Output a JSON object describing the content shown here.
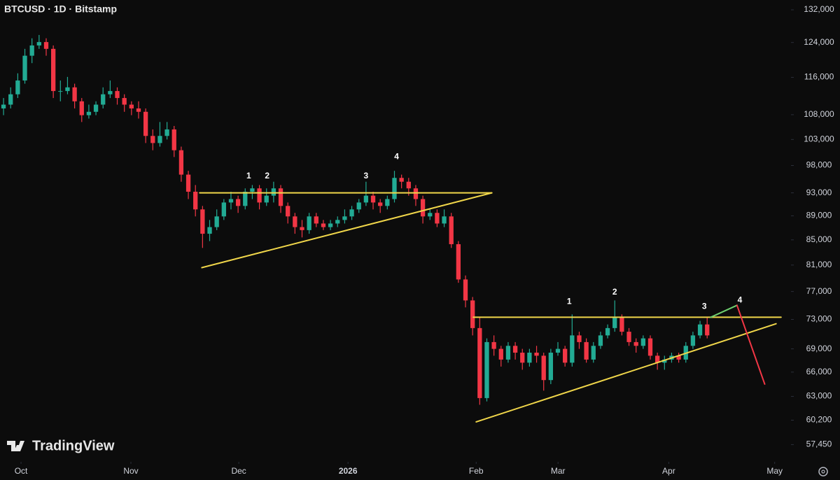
{
  "chart_data": {
    "type": "candlestick",
    "title": "BTCUSD · 1D · Bitstamp",
    "brand": "TradingView",
    "log_scale": true,
    "up_color": "#22ab94",
    "down_color": "#f23645",
    "xlim": [
      -0.5,
      110.6
    ],
    "xticks": [
      {
        "value": 2.46,
        "label": "Oct"
      },
      {
        "value": 17.92,
        "label": "Nov"
      },
      {
        "value": 33.1,
        "label": "Dec"
      },
      {
        "value": 48.47,
        "label": "2026"
      },
      {
        "value": 66.5,
        "label": "Feb"
      },
      {
        "value": 78.02,
        "label": "Mar"
      },
      {
        "value": 93.6,
        "label": "Apr"
      },
      {
        "value": 108.5,
        "label": "May"
      }
    ],
    "ylim": [
      55740,
      134500
    ],
    "yticks": [
      {
        "value": 132000,
        "label": "132,000"
      },
      {
        "value": 124000,
        "label": "124,000"
      },
      {
        "value": 116000,
        "label": "116,000"
      },
      {
        "value": 108000,
        "label": "108,000"
      },
      {
        "value": 103000,
        "label": "103,000"
      },
      {
        "value": 98000,
        "label": "98,000"
      },
      {
        "value": 93000,
        "label": "93,000"
      },
      {
        "value": 89000,
        "label": "89,000"
      },
      {
        "value": 85000,
        "label": "85,000"
      },
      {
        "value": 81000,
        "label": "81,000"
      },
      {
        "value": 77000,
        "label": "77,000"
      },
      {
        "value": 73000,
        "label": "73,000"
      },
      {
        "value": 69000,
        "label": "69,000"
      },
      {
        "value": 66000,
        "label": "66,000"
      },
      {
        "value": 63000,
        "label": "63,000"
      },
      {
        "value": 60200,
        "label": "60,200"
      },
      {
        "value": 57450,
        "label": "57,450"
      }
    ],
    "candles": [
      [
        109300,
        111500,
        107900,
        110100
      ],
      [
        110100,
        113800,
        109300,
        112300
      ],
      [
        112300,
        116900,
        111500,
        115300
      ],
      [
        115300,
        122500,
        114600,
        120900
      ],
      [
        120900,
        125000,
        119200,
        123300
      ],
      [
        123300,
        125800,
        122500,
        124100
      ],
      [
        124100,
        125000,
        120900,
        122500
      ],
      [
        122500,
        123300,
        111500,
        113000
      ],
      [
        113000,
        115300,
        110800,
        113000
      ],
      [
        113000,
        116100,
        112300,
        113800
      ],
      [
        113800,
        114600,
        109300,
        110800
      ],
      [
        110800,
        111500,
        106500,
        107900
      ],
      [
        107900,
        110100,
        107200,
        108600
      ],
      [
        108600,
        110800,
        107900,
        110100
      ],
      [
        110100,
        113800,
        109300,
        112300
      ],
      [
        112300,
        115300,
        111500,
        113000
      ],
      [
        113000,
        113800,
        110100,
        111500
      ],
      [
        111500,
        112300,
        108600,
        110100
      ],
      [
        110100,
        110800,
        107900,
        109300
      ],
      [
        109300,
        110800,
        107200,
        108600
      ],
      [
        108600,
        109300,
        102300,
        103700
      ],
      [
        103700,
        105000,
        100900,
        102300
      ],
      [
        102300,
        106500,
        101600,
        103700
      ],
      [
        103700,
        106500,
        103000,
        105000
      ],
      [
        105000,
        105700,
        99600,
        100900
      ],
      [
        100900,
        101600,
        95000,
        96300
      ],
      [
        96300,
        97000,
        91900,
        93200
      ],
      [
        93200,
        94400,
        88900,
        90100
      ],
      [
        90100,
        90700,
        83700,
        86000
      ],
      [
        86000,
        88300,
        84800,
        87100
      ],
      [
        87100,
        90100,
        86600,
        88900
      ],
      [
        88900,
        91900,
        88300,
        91300
      ],
      [
        91300,
        93200,
        90100,
        91900
      ],
      [
        91900,
        92500,
        89500,
        90700
      ],
      [
        90700,
        93800,
        90100,
        93200
      ],
      [
        93200,
        94400,
        91900,
        93800
      ],
      [
        93800,
        94400,
        90100,
        91300
      ],
      [
        91300,
        93800,
        90700,
        92500
      ],
      [
        92500,
        95000,
        91300,
        93800
      ],
      [
        93800,
        94400,
        89500,
        90700
      ],
      [
        90700,
        91300,
        87700,
        88900
      ],
      [
        88900,
        89500,
        86000,
        87100
      ],
      [
        87100,
        88300,
        85400,
        86600
      ],
      [
        86600,
        89500,
        86000,
        88900
      ],
      [
        88900,
        89500,
        87100,
        87700
      ],
      [
        87700,
        88300,
        86600,
        87100
      ],
      [
        87100,
        88300,
        86600,
        87700
      ],
      [
        87700,
        88900,
        87100,
        88300
      ],
      [
        88300,
        90100,
        87700,
        88900
      ],
      [
        88900,
        90700,
        88300,
        90100
      ],
      [
        90100,
        91900,
        89500,
        91300
      ],
      [
        91300,
        95000,
        90700,
        92500
      ],
      [
        92500,
        93200,
        90100,
        91300
      ],
      [
        91300,
        91900,
        89500,
        90700
      ],
      [
        90700,
        92500,
        90100,
        91900
      ],
      [
        91900,
        97000,
        91300,
        95700
      ],
      [
        95700,
        96300,
        93800,
        95000
      ],
      [
        95000,
        95700,
        92500,
        93800
      ],
      [
        93800,
        94400,
        90700,
        91900
      ],
      [
        91900,
        92500,
        87700,
        88900
      ],
      [
        88900,
        90100,
        88300,
        89500
      ],
      [
        89500,
        90100,
        87100,
        87700
      ],
      [
        87700,
        90100,
        87100,
        88900
      ],
      [
        88900,
        89500,
        83700,
        84300
      ],
      [
        84300,
        84800,
        78300,
        78800
      ],
      [
        78800,
        79400,
        74700,
        75700
      ],
      [
        75700,
        76200,
        70800,
        71800
      ],
      [
        71800,
        73300,
        62000,
        62800
      ],
      [
        62800,
        70400,
        62400,
        69900
      ],
      [
        69900,
        70800,
        68100,
        69000
      ],
      [
        69000,
        69400,
        66700,
        67600
      ],
      [
        67600,
        69900,
        67200,
        69400
      ],
      [
        69400,
        69900,
        67600,
        68500
      ],
      [
        68500,
        69000,
        66300,
        67200
      ],
      [
        67200,
        69000,
        66700,
        68500
      ],
      [
        68500,
        69400,
        67200,
        68100
      ],
      [
        68100,
        68500,
        63700,
        65000
      ],
      [
        65000,
        69000,
        64500,
        68500
      ],
      [
        68500,
        69900,
        68100,
        69000
      ],
      [
        69000,
        69400,
        66700,
        67200
      ],
      [
        67200,
        73700,
        66700,
        70800
      ],
      [
        70800,
        71300,
        69000,
        69900
      ],
      [
        69900,
        70400,
        67200,
        67600
      ],
      [
        67600,
        69900,
        67200,
        69400
      ],
      [
        69400,
        71300,
        69000,
        70800
      ],
      [
        70800,
        72300,
        70400,
        71800
      ],
      [
        71800,
        75700,
        71300,
        73300
      ],
      [
        73300,
        73700,
        70800,
        71300
      ],
      [
        71300,
        71800,
        69400,
        69900
      ],
      [
        69900,
        70400,
        68500,
        69400
      ],
      [
        69400,
        70800,
        69000,
        70400
      ],
      [
        70400,
        70800,
        67600,
        68100
      ],
      [
        68100,
        68500,
        66300,
        67200
      ],
      [
        67200,
        68100,
        66300,
        67600
      ],
      [
        67600,
        68500,
        67200,
        68100
      ],
      [
        68100,
        68500,
        67200,
        67600
      ],
      [
        67600,
        69900,
        67200,
        69400
      ],
      [
        69400,
        71300,
        69000,
        70800
      ],
      [
        70800,
        72800,
        70400,
        72300
      ],
      [
        72300,
        73300,
        70400,
        70800
      ]
    ],
    "drawings": [
      {
        "color": "#f0d64a",
        "points": [
          [
            27.6,
            93000
          ],
          [
            68.7,
            93000
          ]
        ]
      },
      {
        "color": "#f0d64a",
        "points": [
          [
            27.9,
            80600
          ],
          [
            68.7,
            93000
          ]
        ]
      },
      {
        "color": "#f0d64a",
        "points": [
          [
            66.1,
            73300
          ],
          [
            109.4,
            73300
          ]
        ]
      },
      {
        "color": "#f0d64a",
        "points": [
          [
            66.5,
            60000
          ],
          [
            108.7,
            72400
          ]
        ]
      },
      {
        "color": "#6fcf6f",
        "points": [
          [
            99.5,
            73300
          ],
          [
            103.2,
            75000
          ]
        ]
      },
      {
        "color": "#f23645",
        "points": [
          [
            103.2,
            75000
          ],
          [
            107.1,
            64500
          ]
        ]
      }
    ],
    "annotations": [
      {
        "text": "1",
        "x": 34.5,
        "y": 96000
      },
      {
        "text": "2",
        "x": 37.1,
        "y": 96000
      },
      {
        "text": "3",
        "x": 51.0,
        "y": 96000
      },
      {
        "text": "4",
        "x": 55.3,
        "y": 99600
      },
      {
        "text": "1",
        "x": 79.6,
        "y": 75500
      },
      {
        "text": "2",
        "x": 86.0,
        "y": 76900
      },
      {
        "text": "3",
        "x": 98.6,
        "y": 74800
      },
      {
        "text": "4",
        "x": 103.6,
        "y": 75700
      }
    ]
  }
}
